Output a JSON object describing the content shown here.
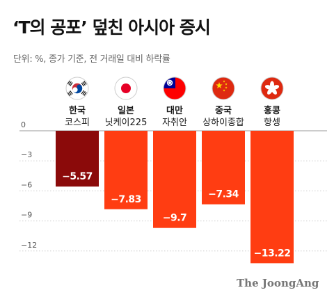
{
  "title": "‘T의 공포’ 덮친 아시아 증시",
  "subtitle": "단위: %, 종가 기준, 전 거래일 대비 하락률",
  "credit": "The JoongAng",
  "colors": {
    "korea_bar": "#8b0a0a",
    "other_bar": "#ff3d12",
    "grid": "#cccccc",
    "axis": "#999999"
  },
  "chart_data": {
    "type": "bar",
    "categories": [
      "한국",
      "일본",
      "대만",
      "중국",
      "홍콩"
    ],
    "sublabels": [
      "코스피",
      "닛케이225",
      "자취안",
      "상하이종합",
      "항셍"
    ],
    "flags": [
      "korea-flag-icon",
      "japan-flag-icon",
      "taiwan-flag-icon",
      "china-flag-icon",
      "hongkong-flag-icon"
    ],
    "values": [
      -5.57,
      -7.83,
      -9.7,
      -7.34,
      -13.22
    ],
    "value_labels": [
      "−5.57",
      "−7.83",
      "−9.7",
      "−7.34",
      "−13.22"
    ],
    "ylim": [
      -14,
      0
    ],
    "yticks": [
      0,
      -3,
      -6,
      -9,
      -12
    ],
    "ytick_labels": [
      "0",
      "−3",
      "−6",
      "−9",
      "−12"
    ],
    "grid": true
  }
}
